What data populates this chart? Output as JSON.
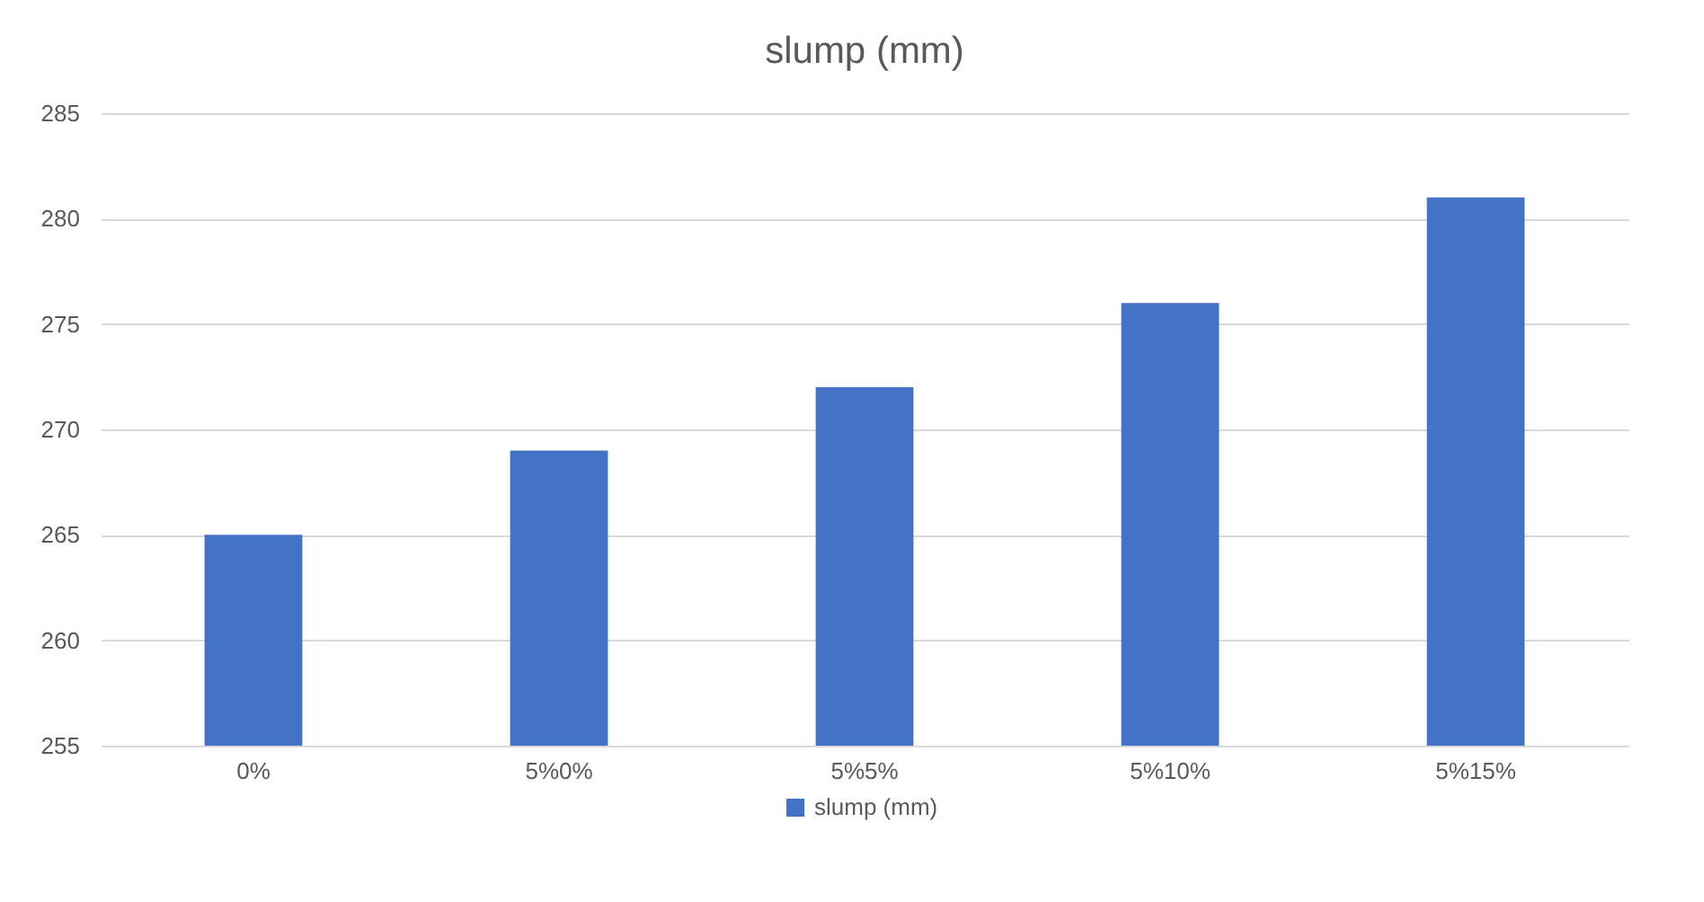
{
  "chart_data": {
    "type": "bar",
    "title": "slump (mm)",
    "categories": [
      "0%",
      "5%0%",
      "5%5%",
      "5%10%",
      "5%15%"
    ],
    "series": [
      {
        "name": "slump (mm)",
        "color": "#4472c4",
        "values": [
          265,
          269,
          272,
          276,
          281
        ]
      }
    ],
    "ylim": [
      255,
      285
    ],
    "yticks": [
      255,
      260,
      265,
      270,
      275,
      280,
      285
    ],
    "grid": "y",
    "legend": "bottom"
  }
}
